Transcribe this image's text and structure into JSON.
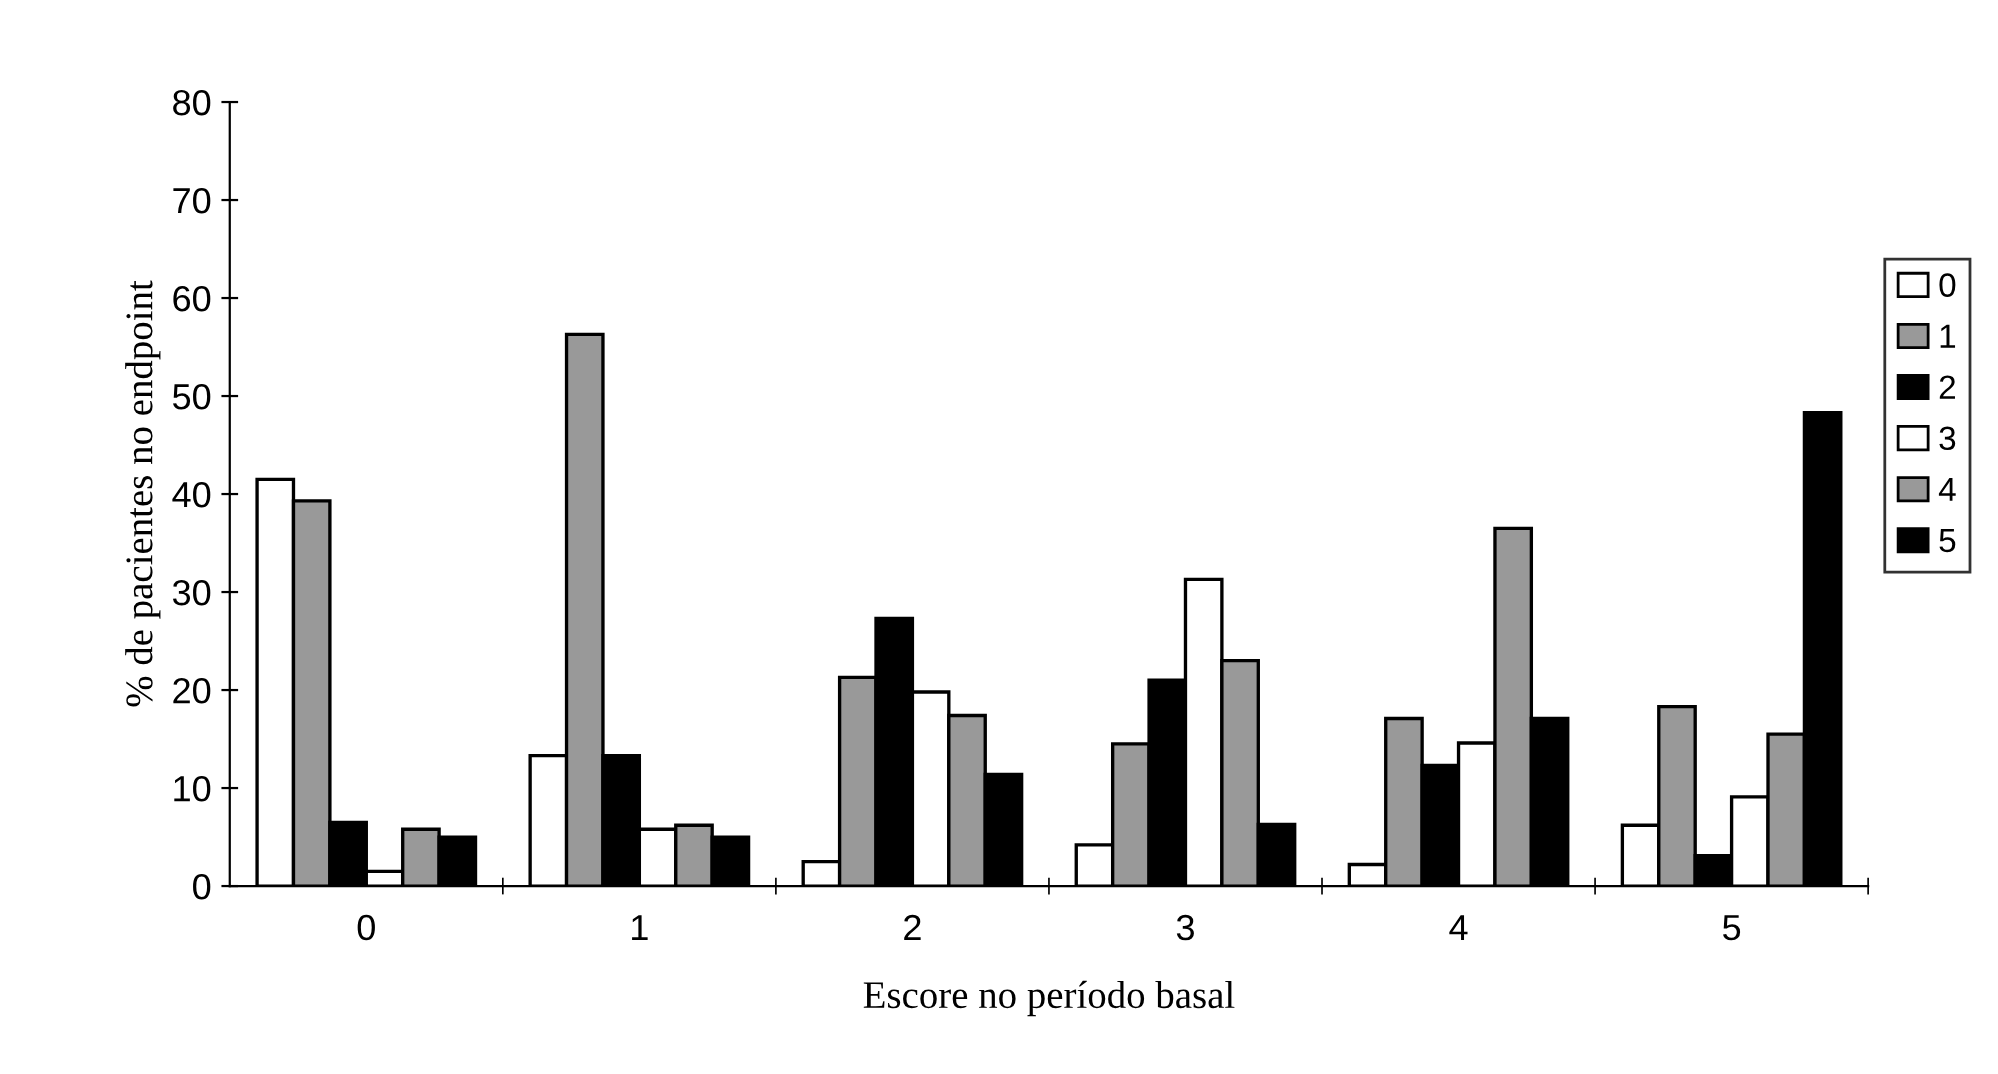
{
  "chart_data": {
    "type": "bar",
    "xlabel": "Escore no período basal",
    "ylabel": "% de pacientes no endpoint",
    "categories": [
      "0",
      "1",
      "2",
      "3",
      "4",
      "5"
    ],
    "series": [
      {
        "name": "0",
        "color": "#ffffff",
        "values": [
          41.5,
          13.3,
          2.5,
          4.2,
          2.2,
          6.2
        ]
      },
      {
        "name": "1",
        "color": "#999999",
        "values": [
          39.3,
          56.3,
          21.3,
          14.5,
          17.1,
          18.3
        ]
      },
      {
        "name": "2",
        "color": "#000000",
        "values": [
          6.5,
          13.3,
          27.3,
          21,
          12.3,
          3.1
        ]
      },
      {
        "name": "3",
        "color": "#ffffff",
        "values": [
          1.5,
          5.8,
          19.8,
          31.3,
          14.6,
          9.1
        ]
      },
      {
        "name": "4",
        "color": "#999999",
        "values": [
          5.8,
          6.2,
          17.4,
          23,
          36.5,
          15.5
        ]
      },
      {
        "name": "5",
        "color": "#000000",
        "values": [
          5,
          5,
          11.4,
          6.3,
          17.1,
          48.3
        ]
      }
    ],
    "ylim": [
      0,
      80
    ],
    "yticks": [
      0,
      10,
      20,
      30,
      40,
      50,
      60,
      70,
      80
    ],
    "grid": false,
    "legend": "right"
  }
}
